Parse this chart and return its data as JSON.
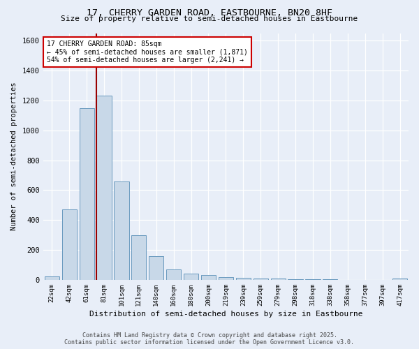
{
  "title1": "17, CHERRY GARDEN ROAD, EASTBOURNE, BN20 8HF",
  "title2": "Size of property relative to semi-detached houses in Eastbourne",
  "xlabel": "Distribution of semi-detached houses by size in Eastbourne",
  "ylabel": "Number of semi-detached properties",
  "categories": [
    "22sqm",
    "42sqm",
    "61sqm",
    "81sqm",
    "101sqm",
    "121sqm",
    "140sqm",
    "160sqm",
    "180sqm",
    "200sqm",
    "219sqm",
    "239sqm",
    "259sqm",
    "279sqm",
    "298sqm",
    "318sqm",
    "338sqm",
    "358sqm",
    "377sqm",
    "397sqm",
    "417sqm"
  ],
  "values": [
    25,
    470,
    1150,
    1230,
    660,
    300,
    158,
    68,
    40,
    32,
    18,
    12,
    10,
    8,
    5,
    4,
    3,
    2,
    2,
    1,
    10
  ],
  "bar_color": "#c8d8e8",
  "bar_edge_color": "#6a9abf",
  "vline_color": "#990000",
  "annotation_text": "17 CHERRY GARDEN ROAD: 85sqm\n← 45% of semi-detached houses are smaller (1,871)\n54% of semi-detached houses are larger (2,241) →",
  "annotation_box_color": "#ffffff",
  "annotation_box_edge": "#cc0000",
  "ylim": [
    0,
    1650
  ],
  "yticks": [
    0,
    200,
    400,
    600,
    800,
    1000,
    1200,
    1400,
    1600
  ],
  "footer1": "Contains HM Land Registry data © Crown copyright and database right 2025.",
  "footer2": "Contains public sector information licensed under the Open Government Licence v3.0.",
  "bg_color": "#e8eef8",
  "grid_color": "#ffffff"
}
